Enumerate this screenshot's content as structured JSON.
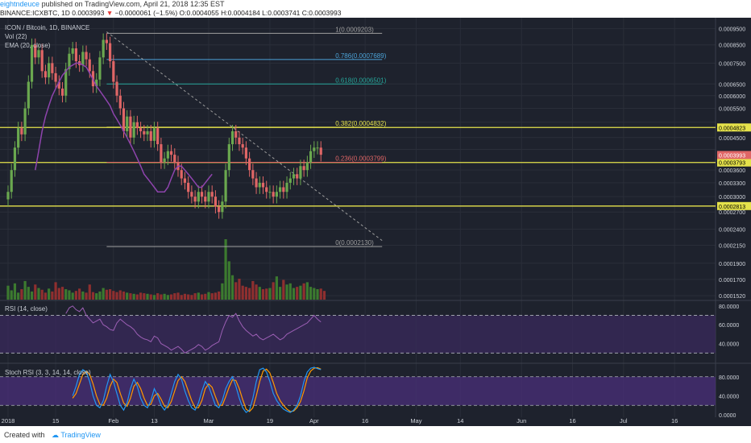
{
  "header": {
    "author": "eightndeuce",
    "published_text": "published on TradingView.com, April 21, 2018 12:35 EST"
  },
  "symbol_bar": {
    "symbol": "BINANCE:ICXBTC, 1D",
    "last": "0.0003993",
    "arrow": "▼",
    "change": "−0.0000061 (−1.5%)",
    "open": "O:0.0004055",
    "high": "H:0.0004184",
    "low": "L:0.0003741",
    "close": "C:0.0003993"
  },
  "legend": {
    "title": "ICON / Bitcoin, 1D, BINANCE",
    "vol": "Vol (22)",
    "ema": "EMA (20, close)",
    "rsi": "RSI (14, close)",
    "stoch": "Stoch RSI (3, 3, 14, 14, close)"
  },
  "footer": {
    "created_with": "Created with",
    "brand": "TradingView"
  },
  "colors": {
    "background": "#1e222d",
    "grid": "#2a2e39",
    "up": "#6aa84f",
    "down": "#e06666",
    "ema": "#8e44ad",
    "hline": "#e5e24b",
    "fib_1": "#9e9e9e",
    "fib_786": "#4ca3d8",
    "fib_618": "#26a69a",
    "fib_382": "#e5e24b",
    "fib_236": "#e06666",
    "fib_0": "#9e9e9e",
    "rsi_band": "#3a2a5c",
    "stoch_band": "#4a2f7a",
    "stoch_k": "#2196f3",
    "stoch_d": "#ff9800"
  },
  "chart_data": {
    "type": "candlestick",
    "timeframe": "1D",
    "price_axis": {
      "ticks": [
        "0.0009500",
        "0.0008500",
        "0.0007500",
        "0.0006500",
        "0.0006000",
        "0.0005500",
        "0.0005000",
        "0.0004500",
        "0.0004150",
        "0.0003600",
        "0.0003300",
        "0.0003000",
        "0.0002700",
        "0.0002400",
        "0.0002150",
        "0.0001900",
        "0.0001700",
        "0.0001520"
      ],
      "tick_values": [
        0.00095,
        0.00085,
        0.00075,
        0.00065,
        0.0006,
        0.00055,
        0.0005,
        0.00045,
        0.000415,
        0.00036,
        0.00033,
        0.0003,
        0.00027,
        0.00024,
        0.000215,
        0.00019,
        0.00017,
        0.000152
      ],
      "range": [
        0.000148,
        0.00098
      ],
      "scale": "log"
    },
    "time_axis": {
      "labels": [
        "2018",
        "15",
        "Feb",
        "13",
        "Mar",
        "19",
        "Apr",
        "16",
        "May",
        "14",
        "Jun",
        "16",
        "Jul",
        "16"
      ],
      "day_index": [
        0,
        14,
        31,
        43,
        59,
        77,
        90,
        105,
        120,
        133,
        151,
        166,
        181,
        196
      ]
    },
    "horizontal_levels": [
      {
        "value": 0.0004823,
        "label": "0.0004823"
      },
      {
        "value": 0.0003793,
        "label": "0.0003793"
      },
      {
        "value": 0.0002813,
        "label": "0.0002813"
      }
    ],
    "current_price": {
      "value": 0.0003993,
      "label": "0.0003993"
    },
    "fibonacci": [
      {
        "ratio": "1",
        "value": 0.0009203,
        "label": "1(0.0009203)"
      },
      {
        "ratio": "0.786",
        "value": 0.0007689,
        "label": "0.786(0.0007689)"
      },
      {
        "ratio": "0.618",
        "value": 0.0006501,
        "label": "0.618(0.0006501)"
      },
      {
        "ratio": "0.382",
        "value": 0.0004832,
        "label": "0.382(0.0004832)"
      },
      {
        "ratio": "0.236",
        "value": 0.0003799,
        "label": "0.236(0.0003799)"
      },
      {
        "ratio": "0",
        "value": 0.000213,
        "label": "0(0.0002130)"
      }
    ],
    "fib_start_day": 29,
    "fib_end_day": 110,
    "trendline": {
      "from_day": 29,
      "from_value": 0.00093,
      "to_day": 110,
      "to_value": 0.000222
    },
    "closes": [
      0.00031,
      0.00036,
      0.00042,
      0.00048,
      0.00046,
      0.00055,
      0.00066,
      0.00085,
      0.00078,
      0.00082,
      0.00071,
      0.00068,
      0.00075,
      0.0007,
      0.00066,
      0.00063,
      0.0006,
      0.00072,
      0.0008,
      0.00083,
      0.00076,
      0.00074,
      0.00081,
      0.00077,
      0.00071,
      0.00064,
      0.00067,
      0.00078,
      0.00088,
      0.00086,
      0.00076,
      0.00066,
      0.0006,
      0.00055,
      0.00047,
      0.00052,
      0.00045,
      0.0005,
      0.00048,
      0.00047,
      0.00046,
      0.00047,
      0.00044,
      0.00048,
      0.00043,
      0.00038,
      0.00039,
      0.00041,
      0.0004,
      0.00038,
      0.00036,
      0.00034,
      0.00033,
      0.00031,
      0.0003,
      0.00029,
      0.00031,
      0.0003,
      0.00029,
      0.00031,
      0.0003,
      0.00028,
      0.00027,
      0.00029,
      0.00036,
      0.00043,
      0.00047,
      0.00045,
      0.00043,
      0.00042,
      0.00039,
      0.00036,
      0.00034,
      0.00032,
      0.00033,
      0.00032,
      0.00031,
      0.00031,
      0.0003,
      0.00031,
      0.00032,
      0.00031,
      0.00033,
      0.00034,
      0.00035,
      0.00034,
      0.00037,
      0.00036,
      0.00038,
      0.00041,
      0.00042,
      0.00042,
      0.0004
    ],
    "ema": [
      0.00036,
      0.00041,
      0.00047,
      0.00052,
      0.00056,
      0.0006,
      0.00063,
      0.00066,
      0.00069,
      0.00071,
      0.00073,
      0.00074,
      0.00075,
      0.00075,
      0.00074,
      0.00073,
      0.0007,
      0.00067,
      0.00064,
      0.00062,
      0.0006,
      0.00058,
      0.00056,
      0.00053,
      0.00051,
      0.00049,
      0.00047,
      0.00045,
      0.00043,
      0.00041,
      0.00039,
      0.00037,
      0.00035,
      0.00034,
      0.00033,
      0.00032,
      0.00031,
      0.00031,
      0.00031,
      0.00032,
      0.00034,
      0.00036,
      0.00037,
      0.00037,
      0.00036,
      0.00035,
      0.00034,
      0.00033,
      0.00032,
      0.00032,
      0.00033,
      0.00034,
      0.00035
    ],
    "ema_start_day": 8,
    "volume": [
      120,
      80,
      140,
      60,
      90,
      160,
      110,
      70,
      130,
      100,
      85,
      60,
      95,
      70,
      150,
      100,
      110,
      90,
      80,
      60,
      75,
      95,
      70,
      60,
      130,
      65,
      55,
      70,
      100,
      85,
      90,
      75,
      65,
      80,
      70,
      60,
      55,
      50,
      45,
      60,
      55,
      50,
      45,
      40,
      55,
      45,
      50,
      40,
      45,
      55,
      60,
      40,
      50,
      45,
      40,
      55,
      60,
      45,
      50,
      65,
      55,
      60,
      70,
      140,
      520,
      330,
      210,
      150,
      180,
      120,
      110,
      100,
      160,
      130,
      110,
      90,
      95,
      100,
      150,
      200,
      110,
      170,
      130,
      140,
      100,
      110,
      120,
      140,
      150,
      110,
      100,
      90,
      95,
      75
    ],
    "rsi": {
      "range": [
        20,
        85
      ],
      "levels": [
        70,
        30
      ],
      "ticks": [
        "80.0000",
        "60.0000",
        "40.0000"
      ],
      "tick_values": [
        80,
        60,
        40
      ],
      "values": [
        72,
        78,
        80,
        76,
        74,
        78,
        70,
        66,
        62,
        64,
        66,
        60,
        58,
        55,
        54,
        62,
        66,
        63,
        60,
        58,
        55,
        50,
        47,
        45,
        44,
        42,
        48,
        46,
        40,
        38,
        36,
        33,
        35,
        37,
        34,
        30,
        32,
        34,
        36,
        39,
        37,
        33,
        35,
        38,
        40,
        42,
        54,
        63,
        70,
        68,
        72,
        64,
        58,
        54,
        51,
        48,
        50,
        46,
        44,
        46,
        48,
        50,
        47,
        44,
        46,
        50,
        52,
        54,
        56,
        58,
        60,
        62,
        66,
        70,
        66,
        63
      ]
    },
    "stoch_rsi": {
      "range": [
        -5,
        105
      ],
      "levels": [
        80,
        20
      ],
      "ticks": [
        "80.0000",
        "40.0000",
        "0.0000"
      ],
      "tick_values": [
        80,
        40,
        0
      ],
      "k": [
        40,
        60,
        85,
        95,
        90,
        70,
        40,
        20,
        15,
        30,
        60,
        85,
        70,
        45,
        20,
        10,
        25,
        55,
        75,
        60,
        35,
        20,
        15,
        30,
        55,
        40,
        20,
        10,
        20,
        45,
        70,
        85,
        75,
        50,
        30,
        15,
        10,
        25,
        50,
        70,
        60,
        40,
        20,
        15,
        30,
        55,
        70,
        80,
        60,
        35,
        15,
        5,
        10,
        35,
        70,
        95,
        98,
        90,
        70,
        45,
        30,
        20,
        12,
        8,
        5,
        10,
        20,
        40,
        70,
        90,
        98,
        100,
        97,
        95
      ],
      "d": [
        35,
        45,
        65,
        85,
        92,
        85,
        65,
        40,
        22,
        20,
        35,
        60,
        75,
        68,
        45,
        25,
        18,
        35,
        60,
        68,
        55,
        35,
        20,
        22,
        40,
        45,
        33,
        18,
        15,
        28,
        50,
        72,
        80,
        70,
        50,
        30,
        15,
        15,
        30,
        55,
        65,
        58,
        38,
        20,
        20,
        38,
        58,
        74,
        72,
        55,
        32,
        12,
        7,
        15,
        40,
        70,
        92,
        96,
        88,
        68,
        45,
        30,
        20,
        12,
        7,
        8,
        15,
        28,
        50,
        78,
        92,
        98,
        99,
        96
      ]
    }
  }
}
